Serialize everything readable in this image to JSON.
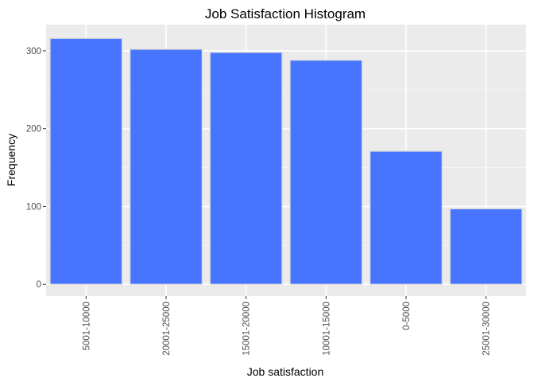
{
  "chart_data": {
    "type": "bar",
    "title": "Job Satisfaction Histogram",
    "xlabel": "Job satisfaction",
    "ylabel": "Frequency",
    "categories": [
      "5001-10000",
      "20001-25000",
      "15001-20000",
      "10001-15000",
      "0-5000",
      "25001-30000"
    ],
    "values": [
      316,
      302,
      298,
      288,
      171,
      97
    ],
    "ylim": [
      0,
      330
    ],
    "yticks": [
      0,
      100,
      200,
      300
    ],
    "grid": true,
    "legend": "none"
  },
  "colors": {
    "bar_fill": "#4775FF",
    "bar_outline": "#d9d9d9",
    "panel_background": "#ebebeb",
    "grid_major": "#ffffff",
    "grid_minor": "#f4f4f4"
  }
}
